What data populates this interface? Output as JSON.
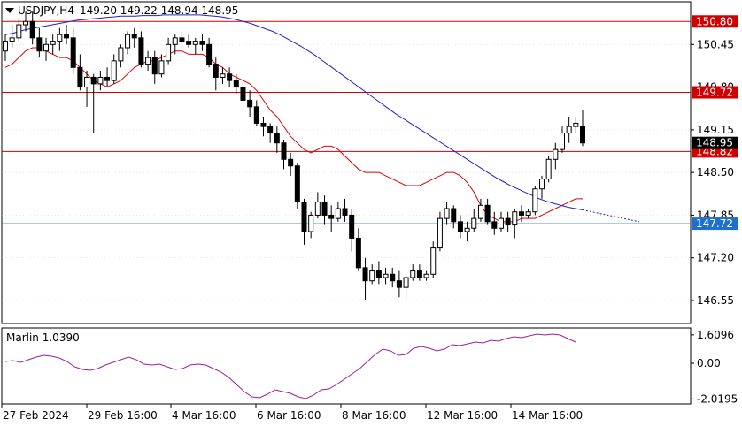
{
  "header": {
    "symbol_tf": "USDJPY,H4",
    "quote": "149.20 149.22 148.94 148.95",
    "indicator_label": "Marlin 1.0390"
  },
  "colors": {
    "candle": "#000000",
    "red_line": "#e00000",
    "blue_line": "#2020d0",
    "h_level_red": "#d00000",
    "h_level_blue": "#1e6fd0",
    "oscillator": "#9c1f9c",
    "grid": "#c8c8c8"
  },
  "chart_data": [
    {
      "type": "candlestick",
      "title": "USDJPY,H4",
      "ylim": [
        146.2,
        151.1
      ],
      "y_ticks": [
        "150.45",
        "149.80",
        "149.15",
        "148.50",
        "147.85",
        "147.20",
        "146.55"
      ],
      "x_ticks": [
        "27 Feb 2024",
        "29 Feb 16:00",
        "4 Mar 16:00",
        "6 Mar 16:00",
        "8 Mar 16:00",
        "12 Mar 16:00",
        "14 Mar 16:00"
      ],
      "horizontal_levels": [
        {
          "label": "150.80",
          "value": 150.8,
          "color": "red"
        },
        {
          "label": "149.72",
          "value": 149.72,
          "color": "red"
        },
        {
          "label": "148.82",
          "value": 148.82,
          "color": "red"
        },
        {
          "label": "147.72",
          "value": 147.72,
          "color": "blue"
        }
      ],
      "current_price": "148.95",
      "candles": [
        [
          150.35,
          150.6,
          150.2,
          150.5
        ],
        [
          150.5,
          150.75,
          150.4,
          150.55
        ],
        [
          150.55,
          150.85,
          150.5,
          150.75
        ],
        [
          150.75,
          150.95,
          150.65,
          150.8
        ],
        [
          150.8,
          150.95,
          150.45,
          150.55
        ],
        [
          150.55,
          150.7,
          150.25,
          150.35
        ],
        [
          150.35,
          150.55,
          150.2,
          150.45
        ],
        [
          150.45,
          150.6,
          150.3,
          150.5
        ],
        [
          150.5,
          150.7,
          150.35,
          150.6
        ],
        [
          150.6,
          150.75,
          150.45,
          150.55
        ],
        [
          150.55,
          150.7,
          150.0,
          150.1
        ],
        [
          150.1,
          150.3,
          149.75,
          149.8
        ],
        [
          149.8,
          150.05,
          149.5,
          149.95
        ],
        [
          149.95,
          150.0,
          149.1,
          149.85
        ],
        [
          149.85,
          150.05,
          149.75,
          149.95
        ],
        [
          149.95,
          150.1,
          149.8,
          149.9
        ],
        [
          149.9,
          150.3,
          149.85,
          150.2
        ],
        [
          150.2,
          150.45,
          150.1,
          150.4
        ],
        [
          150.4,
          150.65,
          150.3,
          150.6
        ],
        [
          150.6,
          150.7,
          150.4,
          150.55
        ],
        [
          150.55,
          150.65,
          150.1,
          150.15
        ],
        [
          150.15,
          150.35,
          150.05,
          150.25
        ],
        [
          150.25,
          150.35,
          149.85,
          150.0
        ],
        [
          150.0,
          150.3,
          149.95,
          150.2
        ],
        [
          150.2,
          150.55,
          150.15,
          150.45
        ],
        [
          150.45,
          150.6,
          150.3,
          150.55
        ],
        [
          150.55,
          150.65,
          150.4,
          150.5
        ],
        [
          150.5,
          150.6,
          150.4,
          150.45
        ],
        [
          150.45,
          150.55,
          150.3,
          150.5
        ],
        [
          150.5,
          150.6,
          150.35,
          150.45
        ],
        [
          150.45,
          150.55,
          150.1,
          150.15
        ],
        [
          150.15,
          150.25,
          149.75,
          149.95
        ],
        [
          149.95,
          150.1,
          149.85,
          150.0
        ],
        [
          150.0,
          150.1,
          149.8,
          149.9
        ],
        [
          149.9,
          150.0,
          149.7,
          149.8
        ],
        [
          149.8,
          149.95,
          149.55,
          149.6
        ],
        [
          149.6,
          149.75,
          149.35,
          149.5
        ],
        [
          149.5,
          149.6,
          149.2,
          149.25
        ],
        [
          149.25,
          149.35,
          149.05,
          149.2
        ],
        [
          149.2,
          149.25,
          148.95,
          149.1
        ],
        [
          149.1,
          149.2,
          148.8,
          148.95
        ],
        [
          148.95,
          149.0,
          148.55,
          148.7
        ],
        [
          148.7,
          148.8,
          148.45,
          148.6
        ],
        [
          148.6,
          148.65,
          147.95,
          148.05
        ],
        [
          148.05,
          148.1,
          147.4,
          147.6
        ],
        [
          147.6,
          147.9,
          147.5,
          147.85
        ],
        [
          147.85,
          148.2,
          147.8,
          148.05
        ],
        [
          148.05,
          148.15,
          147.7,
          147.85
        ],
        [
          147.85,
          148.0,
          147.6,
          147.8
        ],
        [
          147.8,
          148.05,
          147.75,
          147.95
        ],
        [
          147.95,
          148.1,
          147.75,
          147.85
        ],
        [
          147.85,
          147.95,
          147.3,
          147.5
        ],
        [
          147.5,
          147.65,
          147.0,
          147.05
        ],
        [
          147.05,
          147.2,
          146.55,
          146.85
        ],
        [
          146.85,
          147.1,
          146.8,
          147.0
        ],
        [
          147.0,
          147.15,
          146.8,
          146.9
        ],
        [
          146.9,
          147.05,
          146.8,
          146.95
        ],
        [
          146.95,
          147.05,
          146.75,
          146.85
        ],
        [
          146.85,
          147.0,
          146.6,
          146.75
        ],
        [
          146.75,
          146.95,
          146.55,
          146.9
        ],
        [
          146.9,
          147.1,
          146.85,
          147.0
        ],
        [
          147.0,
          147.1,
          146.85,
          146.9
        ],
        [
          146.9,
          147.0,
          146.85,
          146.95
        ],
        [
          146.95,
          147.45,
          146.9,
          147.35
        ],
        [
          147.35,
          147.9,
          147.3,
          147.8
        ],
        [
          147.8,
          148.05,
          147.7,
          147.95
        ],
        [
          147.95,
          148.0,
          147.65,
          147.75
        ],
        [
          147.75,
          147.85,
          147.5,
          147.6
        ],
        [
          147.6,
          147.75,
          147.45,
          147.65
        ],
        [
          147.65,
          147.95,
          147.6,
          147.8
        ],
        [
          147.8,
          148.1,
          147.75,
          148.0
        ],
        [
          148.0,
          148.1,
          147.7,
          147.75
        ],
        [
          147.75,
          147.9,
          147.55,
          147.65
        ],
        [
          147.65,
          147.9,
          147.6,
          147.8
        ],
        [
          147.8,
          147.9,
          147.6,
          147.7
        ],
        [
          147.7,
          147.95,
          147.5,
          147.9
        ],
        [
          147.9,
          148.0,
          147.75,
          147.85
        ],
        [
          147.85,
          147.95,
          147.8,
          147.9
        ],
        [
          147.9,
          148.3,
          147.85,
          148.25
        ],
        [
          148.25,
          148.45,
          148.1,
          148.4
        ],
        [
          148.4,
          148.75,
          148.35,
          148.7
        ],
        [
          148.7,
          148.95,
          148.55,
          148.85
        ],
        [
          148.85,
          149.2,
          148.8,
          149.1
        ],
        [
          149.1,
          149.35,
          148.95,
          149.2
        ],
        [
          149.2,
          149.35,
          149.1,
          149.25
        ],
        [
          149.2,
          149.45,
          148.9,
          148.95
        ]
      ],
      "red_line_points": [
        150.1,
        150.15,
        150.25,
        150.35,
        150.4,
        150.4,
        150.35,
        150.3,
        150.25,
        150.25,
        150.2,
        150.1,
        150.0,
        149.9,
        149.85,
        149.8,
        149.85,
        149.9,
        150.0,
        150.1,
        150.15,
        150.2,
        150.2,
        150.25,
        150.3,
        150.35,
        150.35,
        150.3,
        150.3,
        150.3,
        150.25,
        150.15,
        150.1,
        150.0,
        149.95,
        149.9,
        149.85,
        149.75,
        149.6,
        149.45,
        149.35,
        149.2,
        149.05,
        148.95,
        148.85,
        148.8,
        148.85,
        148.9,
        148.9,
        148.85,
        148.75,
        148.65,
        148.55,
        148.5,
        148.5,
        148.5,
        148.45,
        148.4,
        148.35,
        148.3,
        148.3,
        148.3,
        148.35,
        148.4,
        148.45,
        148.5,
        148.5,
        148.45,
        148.35,
        148.2,
        148.0,
        147.85,
        147.8,
        147.75,
        147.75,
        147.75,
        147.8,
        147.8,
        147.8,
        147.85,
        147.9,
        147.95,
        148.0,
        148.05,
        148.1,
        148.1
      ],
      "blue_line_points": [
        150.6,
        150.62,
        150.65,
        150.68,
        150.7,
        150.72,
        150.74,
        150.76,
        150.78,
        150.8,
        150.82,
        150.83,
        150.84,
        150.85,
        150.86,
        150.87,
        150.88,
        150.88,
        150.88,
        150.89,
        150.89,
        150.89,
        150.9,
        150.9,
        150.9,
        150.9,
        150.9,
        150.9,
        150.89,
        150.88,
        150.87,
        150.85,
        150.83,
        150.8,
        150.77,
        150.73,
        150.69,
        150.65,
        150.6,
        150.54,
        150.48,
        150.42,
        150.35,
        150.28,
        150.2,
        150.12,
        150.04,
        149.96,
        149.88,
        149.8,
        149.72,
        149.64,
        149.56,
        149.48,
        149.4,
        149.33,
        149.26,
        149.19,
        149.12,
        149.05,
        148.98,
        148.91,
        148.84,
        148.77,
        148.7,
        148.63,
        148.56,
        148.49,
        148.42,
        148.36,
        148.3,
        148.25,
        148.2,
        148.15,
        148.1,
        148.06,
        148.03,
        148.0,
        147.97,
        147.95,
        147.93
      ],
      "blue_projection_end": 147.75
    },
    {
      "type": "line",
      "title": "Marlin 1.0390",
      "ylim": [
        -2.3,
        2.0
      ],
      "y_ticks": [
        "1.6096",
        "0.00",
        "-2.0195"
      ],
      "series": [
        {
          "values": [
            0.1,
            0.15,
            0.05,
            0.2,
            0.35,
            0.45,
            0.4,
            0.3,
            0.1,
            -0.2,
            -0.35,
            -0.4,
            -0.3,
            -0.1,
            0.05,
            0.2,
            0.35,
            0.2,
            -0.05,
            -0.1,
            -0.05,
            -0.2,
            -0.35,
            -0.3,
            -0.1,
            -0.05,
            -0.1,
            -0.3,
            -0.5,
            -0.8,
            -1.2,
            -1.6,
            -1.9,
            -1.95,
            -1.75,
            -1.5,
            -1.6,
            -1.7,
            -1.9,
            -2.0,
            -1.8,
            -1.5,
            -1.45,
            -1.2,
            -0.9,
            -0.6,
            -0.3,
            0.1,
            0.5,
            0.8,
            0.7,
            0.45,
            0.5,
            0.85,
            0.95,
            0.85,
            0.7,
            0.8,
            1.05,
            1.0,
            1.1,
            1.2,
            1.15,
            1.3,
            1.25,
            1.4,
            1.5,
            1.45,
            1.55,
            1.65,
            1.6,
            1.65,
            1.6,
            1.4,
            1.2
          ]
        }
      ]
    }
  ]
}
